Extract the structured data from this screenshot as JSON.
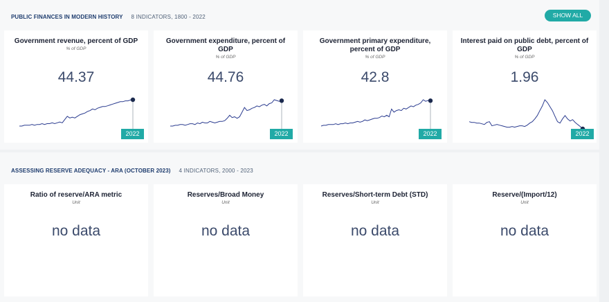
{
  "sections": [
    {
      "title": "PUBLIC FINANCES IN MODERN HISTORY",
      "meta": "8 INDICATORS, 1800 - 2022",
      "show_all": "SHOW ALL",
      "cards": [
        {
          "title": "Government revenue, percent of GDP",
          "unit": "% of GDP",
          "value": "44.37",
          "year": "2022"
        },
        {
          "title": "Government expenditure, percent of GDP",
          "unit": "% of GDP",
          "value": "44.76",
          "year": "2022"
        },
        {
          "title": "Government primary expenditure, percent of GDP",
          "unit": "% of GDP",
          "value": "42.8",
          "year": "2022"
        },
        {
          "title": "Interest paid on public debt, percent of GDP",
          "unit": "% of GDP",
          "value": "1.96",
          "year": "2022"
        }
      ]
    },
    {
      "title": "ASSESSING RESERVE ADEQUACY - ARA (OCTOBER 2023)",
      "meta": "4 INDICATORS, 2000 - 2023",
      "cards": [
        {
          "title": "Ratio of reserve/ARA metric",
          "unit": "Unit",
          "value": "no data"
        },
        {
          "title": "Reserves/Broad Money",
          "unit": "Unit",
          "value": "no data"
        },
        {
          "title": "Reserves/Short-term Debt (STD)",
          "unit": "Unit",
          "value": "no data"
        },
        {
          "title": "Reserve/(Import/12)",
          "unit": "Unit",
          "value": "no data"
        }
      ]
    }
  ],
  "colors": {
    "accent": "#21aaa6",
    "line": "#2a3b8f",
    "point": "#1b2a4e",
    "value_text": "#3b4a6b"
  },
  "chart_data": [
    {
      "type": "line",
      "title": "Government revenue, percent of GDP",
      "last_value": 44.37,
      "last_year": 2022,
      "values": [
        12,
        12,
        13,
        13,
        13,
        14,
        13,
        14,
        14,
        15,
        14,
        15,
        15,
        16,
        15,
        16,
        17,
        16,
        20,
        24,
        22,
        23,
        22,
        24,
        26,
        27,
        28,
        30,
        31,
        33,
        32,
        34,
        35,
        36,
        36,
        37,
        38,
        39,
        40,
        41,
        42,
        42,
        43,
        43,
        44,
        44.37
      ]
    },
    {
      "type": "line",
      "title": "Government expenditure, percent of GDP",
      "last_value": 44.76,
      "last_year": 2022,
      "values": [
        12,
        12,
        13,
        13,
        14,
        14,
        13,
        14,
        15,
        15,
        14,
        16,
        15,
        17,
        16,
        16,
        18,
        17,
        16,
        17,
        18,
        18,
        19,
        22,
        26,
        23,
        24,
        22,
        24,
        30,
        36,
        32,
        33,
        35,
        36,
        38,
        37,
        39,
        40,
        38,
        41,
        42,
        46,
        45,
        44,
        44.76
      ]
    },
    {
      "type": "line",
      "title": "Government primary expenditure, percent of GDP",
      "last_value": 42.8,
      "last_year": 2022,
      "values": [
        10,
        11,
        11,
        12,
        12,
        12,
        13,
        12,
        13,
        13,
        14,
        13,
        14,
        14,
        15,
        16,
        15,
        16,
        18,
        17,
        18,
        19,
        20,
        20,
        21,
        23,
        22,
        24,
        22,
        32,
        28,
        30,
        31,
        30,
        33,
        32,
        34,
        36,
        35,
        37,
        38,
        40,
        44,
        42,
        43,
        42.8
      ]
    },
    {
      "type": "line",
      "title": "Interest paid on public debt, percent of GDP",
      "last_value": 1.96,
      "last_year": 2022,
      "values": [
        3.0,
        2.9,
        2.9,
        2.8,
        2.8,
        2.7,
        2.6,
        2.9,
        3.0,
        2.4,
        2.5,
        2.6,
        2.5,
        2.4,
        2.3,
        2.2,
        2.2,
        2.3,
        2.2,
        2.3,
        2.4,
        2.4,
        2.3,
        2.5,
        2.8,
        3.0,
        3.4,
        3.9,
        4.6,
        5.3,
        6.2,
        5.8,
        5.2,
        4.6,
        3.8,
        3.0,
        2.8,
        3.4,
        3.9,
        3.4,
        3.1,
        3.3,
        2.9,
        2.6,
        2.3,
        1.96
      ]
    }
  ]
}
